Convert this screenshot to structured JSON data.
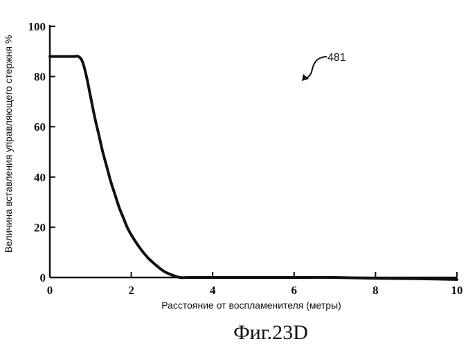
{
  "chart_data": {
    "type": "line",
    "xlabel": "Расстояние от воспламенителя (метры)",
    "ylabel": "Величина вставления управляющего стержня %",
    "xlim": [
      0,
      10
    ],
    "ylim": [
      0,
      100
    ],
    "x_ticks": [
      "0",
      "2",
      "4",
      "6",
      "8",
      "10"
    ],
    "y_ticks": [
      "0",
      "20",
      "40",
      "60",
      "80",
      "100"
    ],
    "grid": false,
    "series": [
      {
        "x": [
          0,
          0.3,
          0.6,
          0.7,
          0.8,
          0.9,
          1.0,
          1.1,
          1.2,
          1.3,
          1.4,
          1.5,
          1.6,
          1.7,
          1.8,
          1.9,
          2.0,
          2.2,
          2.4,
          2.6,
          2.8,
          3.0,
          3.2,
          3.4,
          4.0,
          5.0,
          6.0,
          7.0,
          8.0,
          9.0,
          10.0
        ],
        "values": [
          88,
          88,
          88,
          88,
          86,
          80,
          72,
          64,
          57,
          50,
          44,
          38,
          33,
          28,
          24,
          20,
          17,
          12,
          8,
          5,
          2.5,
          1,
          0,
          0,
          0,
          0,
          0,
          0,
          -0.3,
          -0.5,
          -0.8
        ]
      }
    ],
    "annotations": [
      {
        "text": "481"
      }
    ],
    "caption": "Фиг.23D"
  }
}
